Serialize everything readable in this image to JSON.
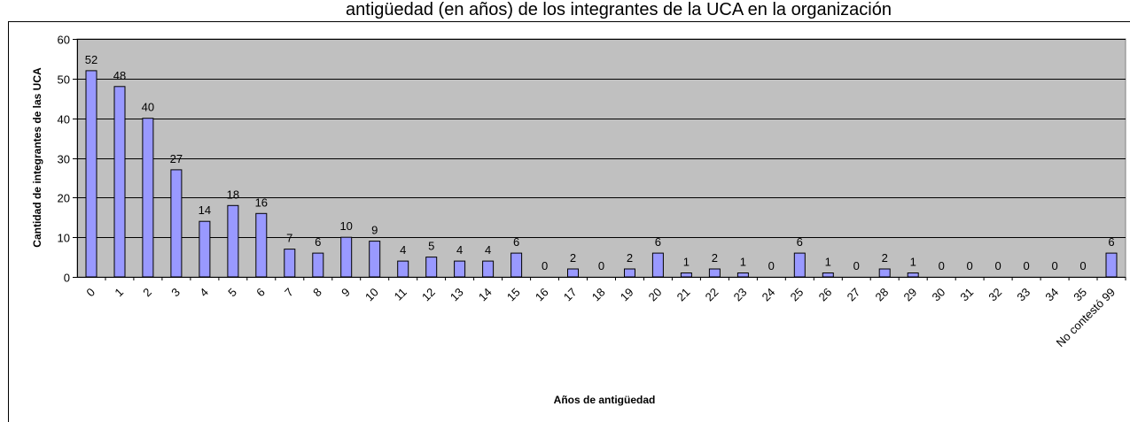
{
  "chart_data": {
    "type": "bar",
    "title": "",
    "title_partial": "antigüedad (en años) de los integrantes de la UCA en la organización",
    "xlabel": "Años de antigüedad",
    "ylabel": "Cantidad de integrantes de las UCA",
    "ylim": [
      0,
      60
    ],
    "yticks": [
      0,
      10,
      20,
      30,
      40,
      50,
      60
    ],
    "grid": true,
    "legend": "none",
    "categories": [
      "0",
      "1",
      "2",
      "3",
      "4",
      "5",
      "6",
      "7",
      "8",
      "9",
      "10",
      "11",
      "12",
      "13",
      "14",
      "15",
      "16",
      "17",
      "18",
      "19",
      "20",
      "21",
      "22",
      "23",
      "24",
      "25",
      "26",
      "27",
      "28",
      "29",
      "30",
      "31",
      "32",
      "33",
      "34",
      "35",
      "No contestó 99"
    ],
    "values": [
      52,
      48,
      40,
      27,
      14,
      18,
      16,
      7,
      6,
      10,
      9,
      4,
      5,
      4,
      4,
      6,
      0,
      2,
      0,
      2,
      6,
      1,
      2,
      1,
      0,
      6,
      1,
      0,
      2,
      1,
      0,
      0,
      0,
      0,
      0,
      0,
      6
    ],
    "colors": {
      "bar": "#9999ff",
      "bar_stroke": "#000000",
      "plot_bg": "#c0c0c0",
      "grid": "#000000"
    }
  }
}
